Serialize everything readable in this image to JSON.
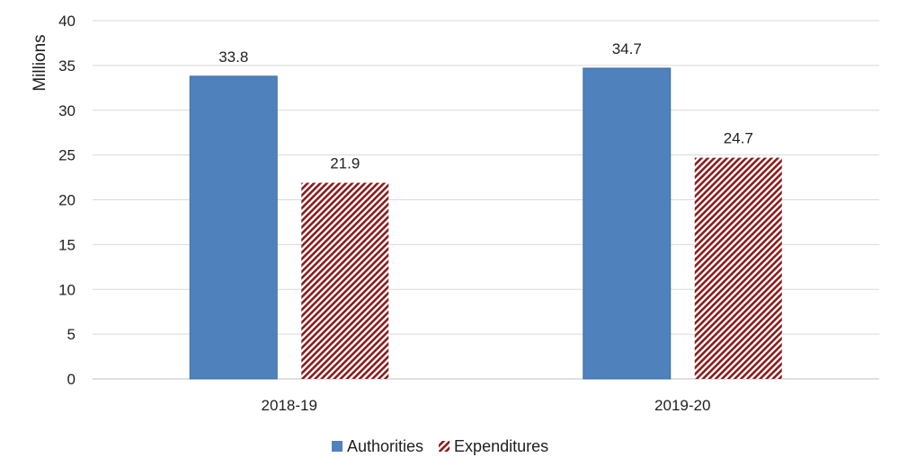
{
  "chart_data": {
    "type": "bar",
    "categories": [
      "2018-19",
      "2019-20"
    ],
    "series": [
      {
        "name": "Authorities",
        "values": [
          33.8,
          34.7
        ],
        "color": "#4f81bd",
        "pattern": "solid"
      },
      {
        "name": "Expenditures",
        "values": [
          21.9,
          24.7
        ],
        "color": "#8b1a1a",
        "pattern": "diagonal-hatch"
      }
    ],
    "data_labels": [
      [
        "33.8",
        "34.7"
      ],
      [
        "21.9",
        "24.7"
      ]
    ],
    "title": "",
    "xlabel": "",
    "ylabel": "Millions",
    "ylim": [
      0,
      40
    ],
    "yticks": [
      "0",
      "5",
      "10",
      "15",
      "20",
      "25",
      "30",
      "35",
      "40"
    ],
    "grid": true,
    "legend_position": "bottom"
  }
}
